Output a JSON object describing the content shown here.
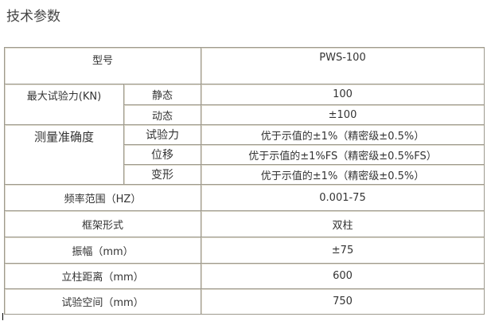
{
  "title": "技术参数",
  "rows": {
    "model": {
      "label": "型号",
      "value": "PWS-100"
    },
    "max_force": {
      "label": "最大试验力(KN)",
      "static_label": "静态",
      "static_value": "100",
      "dynamic_label": "动态",
      "dynamic_value": "±100"
    },
    "accuracy": {
      "label": "测量准确度",
      "force_label": "试验力",
      "force_value": "优于示值的±1%（精密级±0.5%）",
      "disp_label": "位移",
      "disp_value": "优于示值的±1%FS（精密级±0.5%FS）",
      "deform_label": "变形",
      "deform_value": "优于示值的±1%（精密级±0.5%）"
    },
    "freq": {
      "label": "频率范围（HZ）",
      "value": "0.001-75"
    },
    "frame": {
      "label": "框架形式",
      "value": "双柱"
    },
    "amplitude": {
      "label": "振幅（mm）",
      "value": "±75"
    },
    "column_dist": {
      "label": "立柱距离（mm）",
      "value": "600"
    },
    "test_space": {
      "label": "试验空间（mm）",
      "value": "750"
    }
  }
}
